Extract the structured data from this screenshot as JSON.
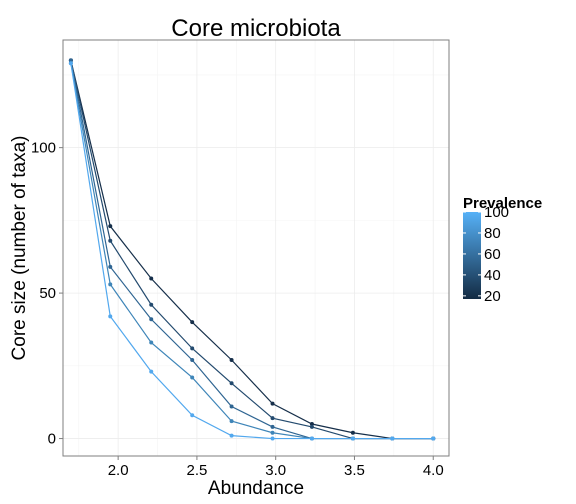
{
  "chart_data": {
    "type": "line",
    "title": "Core microbiota",
    "xlabel": "Abundance",
    "ylabel": "Core size (number of taxa)",
    "xlim": [
      1.65,
      4.1
    ],
    "ylim": [
      -6,
      137
    ],
    "x_ticks": [
      2.0,
      2.5,
      3.0,
      3.5,
      4.0
    ],
    "x_tick_labels": [
      "2.0",
      "2.5",
      "3.0",
      "3.5",
      "4.0"
    ],
    "y_ticks": [
      0,
      50,
      100
    ],
    "y_tick_labels": [
      "0",
      "50",
      "100"
    ],
    "grid": true,
    "legend": {
      "title": "Prevalence",
      "placement": "right",
      "range": [
        17,
        100
      ],
      "ticks": [
        20,
        40,
        60,
        80,
        100
      ],
      "tick_labels": [
        "20",
        "40",
        "60",
        "80",
        "100"
      ],
      "color_low": "#132b43",
      "color_high": "#56b1f7"
    },
    "x": [
      1.7,
      1.95,
      2.21,
      2.47,
      2.72,
      2.98,
      3.23,
      3.49,
      3.74,
      4.0
    ],
    "series": [
      {
        "prevalence": 20,
        "color": "#162f4a",
        "values": [
          130,
          73,
          55,
          40,
          27,
          12,
          5,
          2,
          0,
          0
        ]
      },
      {
        "prevalence": 40,
        "color": "#234a6e",
        "values": [
          130,
          68,
          46,
          31,
          19,
          7,
          4,
          0,
          0,
          0
        ]
      },
      {
        "prevalence": 60,
        "color": "#2f6592",
        "values": [
          130,
          59,
          41,
          27,
          11,
          4,
          0,
          0,
          0,
          0
        ]
      },
      {
        "prevalence": 80,
        "color": "#3e85b8",
        "values": [
          129,
          53,
          33,
          21,
          6,
          2,
          0,
          0,
          0,
          0
        ]
      },
      {
        "prevalence": 100,
        "color": "#52a8ee",
        "values": [
          129,
          42,
          23,
          8,
          1,
          0,
          0,
          0,
          0,
          0
        ]
      }
    ]
  }
}
